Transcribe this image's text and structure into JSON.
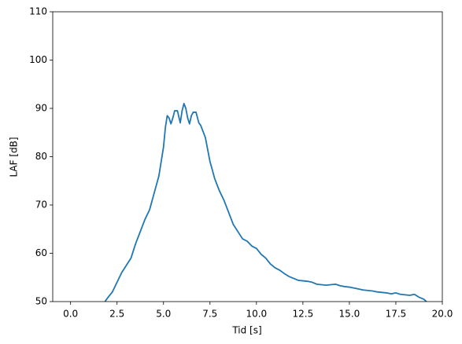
{
  "chart_data": {
    "type": "line",
    "x_label": "Tid [s]",
    "y_label": "LAF [dB]",
    "x": [
      1.85,
      2.0,
      2.25,
      2.5,
      2.75,
      3.0,
      3.25,
      3.5,
      3.75,
      4.0,
      4.25,
      4.5,
      4.75,
      5.0,
      5.1,
      5.2,
      5.3,
      5.4,
      5.5,
      5.6,
      5.75,
      5.9,
      6.0,
      6.1,
      6.2,
      6.3,
      6.4,
      6.5,
      6.6,
      6.75,
      6.9,
      7.0,
      7.25,
      7.5,
      7.75,
      8.0,
      8.25,
      8.5,
      8.75,
      9.0,
      9.25,
      9.5,
      9.75,
      10.0,
      10.25,
      10.5,
      10.75,
      11.0,
      11.25,
      11.5,
      11.75,
      12.0,
      12.25,
      12.5,
      12.75,
      13.0,
      13.25,
      13.5,
      13.75,
      14.0,
      14.25,
      14.5,
      14.75,
      15.0,
      15.25,
      15.5,
      15.75,
      16.0,
      16.25,
      16.5,
      16.75,
      17.0,
      17.25,
      17.5,
      17.75,
      18.0,
      18.25,
      18.5,
      18.75,
      19.0,
      19.15
    ],
    "series": [
      {
        "name": "LAF",
        "color": "#1f77b4",
        "values": [
          50,
          50.8,
          52,
          54,
          56,
          57.5,
          59,
          62,
          64.5,
          67,
          69,
          72.5,
          76,
          82,
          86,
          88.5,
          88,
          86.8,
          88,
          89.5,
          89.5,
          87,
          89.5,
          91,
          90,
          88,
          86.8,
          88.5,
          89.2,
          89.2,
          87,
          86.5,
          84,
          79,
          75.5,
          73,
          71,
          68.5,
          66,
          64.5,
          63,
          62.5,
          61.5,
          61,
          59.8,
          59,
          57.8,
          57,
          56.5,
          55.8,
          55.2,
          54.8,
          54.4,
          54.3,
          54.2,
          54,
          53.6,
          53.5,
          53.4,
          53.5,
          53.6,
          53.3,
          53.1,
          53,
          52.8,
          52.6,
          52.4,
          52.3,
          52.2,
          52,
          51.9,
          51.8,
          51.6,
          51.8,
          51.5,
          51.4,
          51.3,
          51.5,
          50.9,
          50.5,
          50
        ]
      }
    ],
    "xlim": [
      -0.96,
      20.0
    ],
    "ylim": [
      50,
      110
    ],
    "xticks": [
      {
        "value": 0,
        "label": "0.0"
      },
      2.5,
      {
        "value": 5,
        "label": "5.0"
      },
      7.5,
      {
        "value": 10,
        "label": "10.0"
      },
      12.5,
      {
        "value": 15,
        "label": "15.0"
      },
      17.5,
      {
        "value": 20,
        "label": "20.0"
      }
    ],
    "yticks": [
      50,
      60,
      70,
      80,
      90,
      100,
      110
    ]
  }
}
